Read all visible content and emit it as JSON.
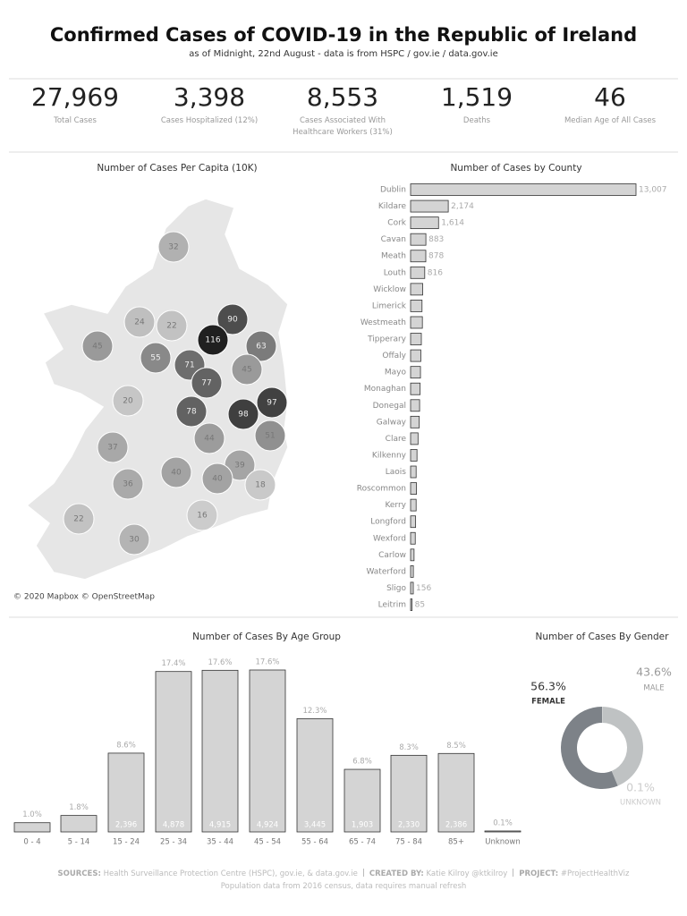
{
  "header": {
    "title": "Confirmed Cases of COVID-19 in the Republic of Ireland",
    "subtitle": "as of Midnight, 22nd August  - data is from HSPC / gov.ie / data.gov.ie"
  },
  "kpis": [
    {
      "value": "27,969",
      "label": "Total Cases"
    },
    {
      "value": "3,398",
      "label": "Cases Hospitalized (12%)"
    },
    {
      "value": "8,553",
      "label": "Cases Associated With Healthcare Workers (31%)"
    },
    {
      "value": "1,519",
      "label": "Deaths"
    },
    {
      "value": "46",
      "label": "Median Age of All Cases"
    }
  ],
  "chart_data": [
    {
      "type": "choropleth",
      "title": "Number of Cases Per Capita (10K)",
      "values": [
        32,
        24,
        22,
        90,
        116,
        63,
        45,
        55,
        71,
        45,
        77,
        20,
        97,
        78,
        98,
        44,
        51,
        37,
        40,
        39,
        40,
        36,
        18,
        16,
        22,
        30
      ],
      "attribution": "© 2020 Mapbox © OpenStreetMap"
    },
    {
      "type": "hbar",
      "title": "Number of Cases by County",
      "categories": [
        "Dublin",
        "Kildare",
        "Cork",
        "Cavan",
        "Meath",
        "Louth",
        "Wicklow",
        "Limerick",
        "Westmeath",
        "Tipperary",
        "Offaly",
        "Mayo",
        "Monaghan",
        "Donegal",
        "Galway",
        "Clare",
        "Kilkenny",
        "Laois",
        "Roscommon",
        "Kerry",
        "Longford",
        "Wexford",
        "Carlow",
        "Waterford",
        "Sligo",
        "Leitrim"
      ],
      "values": [
        13007,
        2174,
        1614,
        883,
        878,
        816,
        700,
        660,
        680,
        620,
        590,
        570,
        550,
        520,
        500,
        430,
        370,
        320,
        340,
        320,
        290,
        270,
        200,
        160,
        156,
        85
      ],
      "value_labels": [
        "13,007",
        "2,174",
        "1,614",
        "883",
        "878",
        "816",
        null,
        null,
        null,
        null,
        null,
        null,
        null,
        null,
        null,
        null,
        null,
        null,
        null,
        null,
        null,
        null,
        null,
        null,
        "156",
        "85"
      ],
      "color": "#d4d4d4"
    },
    {
      "type": "bar",
      "title": "Number of Cases By Age Group",
      "categories": [
        "0 - 4",
        "5 - 14",
        "15 - 24",
        "25 - 34",
        "35 - 44",
        "45 - 54",
        "55 - 64",
        "65 - 74",
        "75 - 84",
        "85+",
        "Unknown"
      ],
      "values": [
        280,
        500,
        2396,
        4878,
        4915,
        4924,
        3445,
        1903,
        2330,
        2386,
        28
      ],
      "value_labels": [
        null,
        null,
        "2,396",
        "4,878",
        "4,915",
        "4,924",
        "3,445",
        "1,903",
        "2,330",
        "2,386",
        null
      ],
      "percent_values": [
        1.0,
        1.8,
        8.6,
        17.4,
        17.6,
        17.6,
        12.3,
        6.8,
        8.3,
        8.5,
        0.1
      ],
      "percent_labels": [
        "1.0%",
        "1.8%",
        "8.6%",
        "17.4%",
        "17.6%",
        "17.6%",
        "12.3%",
        "6.8%",
        "8.3%",
        "8.5%",
        "0.1%"
      ],
      "color": "#d4d4d4"
    },
    {
      "type": "donut",
      "title": "Number of Cases By Gender",
      "categories": [
        "FEMALE",
        "MALE",
        "UNKNOWN"
      ],
      "values": [
        56.3,
        43.6,
        0.1
      ],
      "value_labels": [
        "56.3%",
        "43.6%",
        "0.1%"
      ],
      "colors": [
        "#7d8288",
        "#bfc2c3",
        "#e2e2e2"
      ]
    }
  ],
  "footer": {
    "line1": [
      {
        "label": "SOURCES:",
        "text": " Health Surveillance Protection Centre (HSPC), gov.ie, & data.gov.ie"
      },
      {
        "label": "CREATED BY:",
        "text": " Katie Kilroy @ktkilroy"
      },
      {
        "label": "PROJECT:",
        "text": " #ProjectHealthViz"
      }
    ],
    "line2": "Population data from 2016 census, data requires manual refresh"
  }
}
